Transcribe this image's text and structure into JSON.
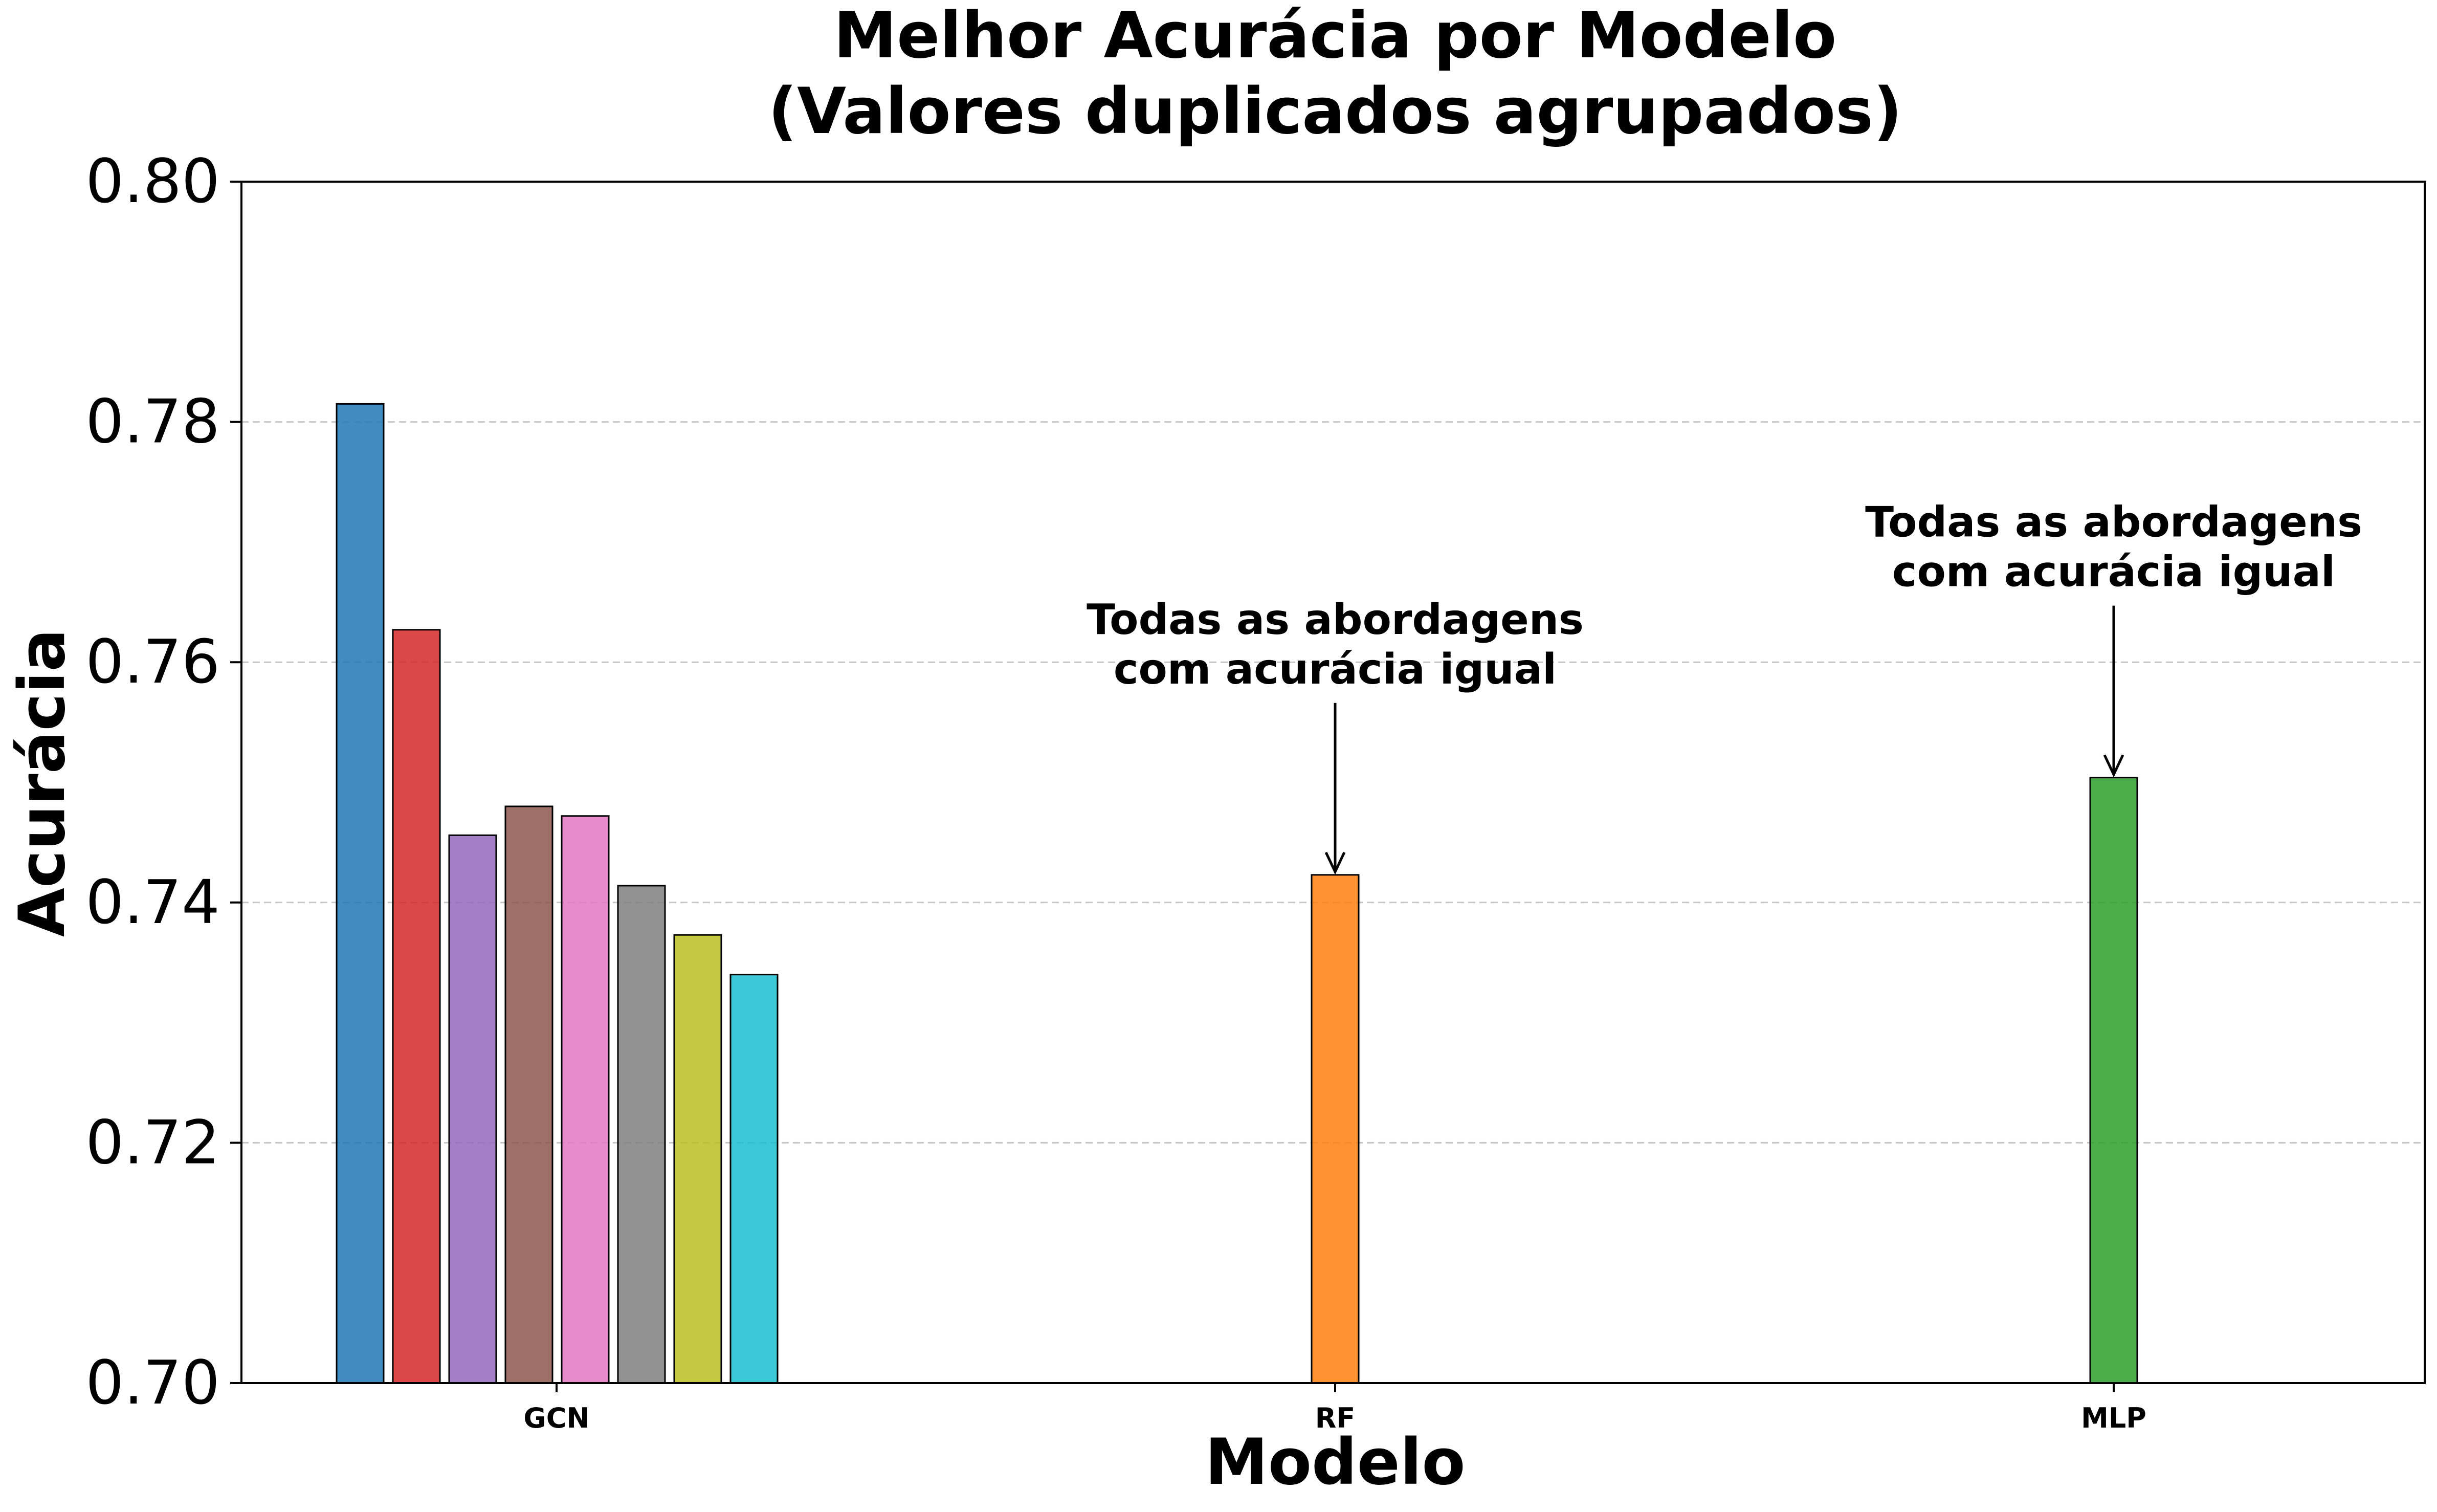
{
  "chart_data": {
    "type": "bar",
    "title": "Melhor Acurácia por Modelo",
    "subtitle": "(Valores duplicados agrupados)",
    "xlabel": "Modelo",
    "ylabel": "Acurácia",
    "ylim": [
      0.7,
      0.8
    ],
    "yticks": [
      0.7,
      0.72,
      0.74,
      0.76,
      0.78,
      0.8
    ],
    "ytick_labels": [
      "0.70",
      "0.72",
      "0.74",
      "0.76",
      "0.78",
      "0.80"
    ],
    "grid": "horizontal dashed",
    "legend": "none",
    "groups": [
      {
        "category": "GCN",
        "bars": [
          {
            "value": 0.7815,
            "color": "#1f77b4"
          },
          {
            "value": 0.7627,
            "color": "#d62728"
          },
          {
            "value": 0.7456,
            "color": "#9467bd"
          },
          {
            "value": 0.748,
            "color": "#8c564b"
          },
          {
            "value": 0.7472,
            "color": "#e377c2"
          },
          {
            "value": 0.7414,
            "color": "#7f7f7f"
          },
          {
            "value": 0.7373,
            "color": "#bcbd22"
          },
          {
            "value": 0.734,
            "color": "#17becf"
          }
        ]
      },
      {
        "category": "RF",
        "bars": [
          {
            "value": 0.7423,
            "color": "#ff7f0e"
          }
        ],
        "annotation": [
          "Todas as abordagens",
          "com acurácia igual"
        ]
      },
      {
        "category": "MLP",
        "bars": [
          {
            "value": 0.7504,
            "color": "#2ca02c"
          }
        ],
        "annotation": [
          "Todas as abordagens",
          "com acurácia igual"
        ]
      }
    ]
  }
}
